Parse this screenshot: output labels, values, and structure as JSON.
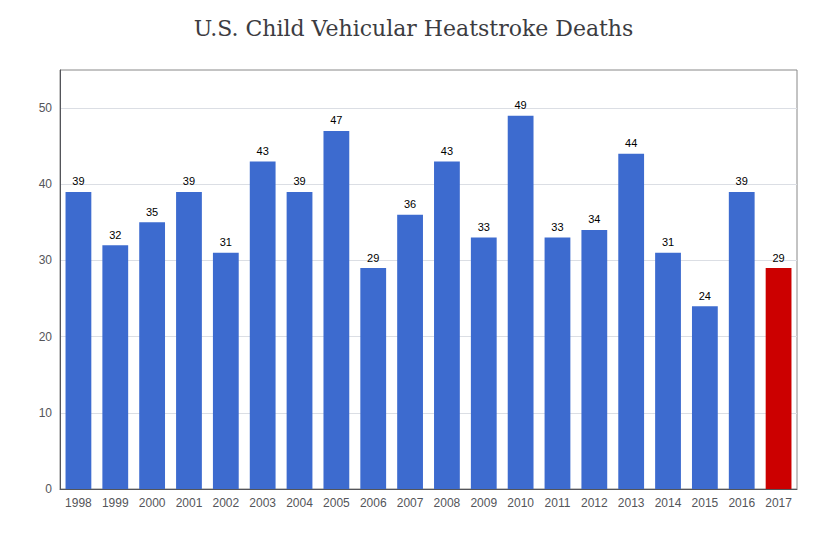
{
  "chart_data": {
    "type": "bar",
    "title": "U.S. Child Vehicular Heatstroke Deaths",
    "categories": [
      "1998",
      "1999",
      "2000",
      "2001",
      "2002",
      "2003",
      "2004",
      "2005",
      "2006",
      "2007",
      "2008",
      "2009",
      "2010",
      "2011",
      "2012",
      "2013",
      "2014",
      "2015",
      "2016",
      "2017"
    ],
    "values": [
      39,
      32,
      35,
      39,
      31,
      43,
      39,
      47,
      29,
      36,
      43,
      33,
      49,
      33,
      34,
      44,
      31,
      24,
      39,
      29
    ],
    "colors": [
      "#3d6bcf",
      "#3d6bcf",
      "#3d6bcf",
      "#3d6bcf",
      "#3d6bcf",
      "#3d6bcf",
      "#3d6bcf",
      "#3d6bcf",
      "#3d6bcf",
      "#3d6bcf",
      "#3d6bcf",
      "#3d6bcf",
      "#3d6bcf",
      "#3d6bcf",
      "#3d6bcf",
      "#3d6bcf",
      "#3d6bcf",
      "#3d6bcf",
      "#3d6bcf",
      "#cc0000"
    ],
    "ylim": [
      0,
      55
    ],
    "yticks": [
      0,
      10,
      20,
      30,
      40,
      50
    ],
    "grid": true,
    "data_labels": true
  }
}
